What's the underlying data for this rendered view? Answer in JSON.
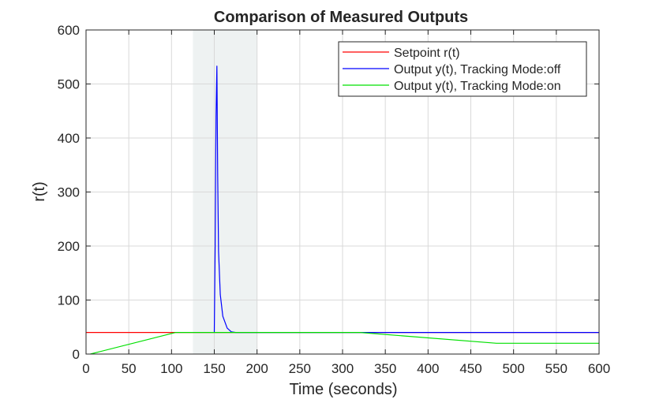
{
  "chart_data": {
    "type": "line",
    "title": "Comparison of Measured Outputs",
    "xlabel": "Time (seconds)",
    "ylabel": "r(t)",
    "xlim": [
      0,
      600
    ],
    "ylim": [
      0,
      600
    ],
    "xticks": [
      0,
      50,
      100,
      150,
      200,
      250,
      300,
      350,
      400,
      450,
      500,
      550,
      600
    ],
    "yticks": [
      0,
      100,
      200,
      300,
      400,
      500,
      600
    ],
    "grid": true,
    "legend_position": "top-right",
    "shaded_region": {
      "x_start": 125,
      "x_end": 200,
      "color": "#eef2f2"
    },
    "series": [
      {
        "name": "Setpoint r(t)",
        "color": "#ff0000",
        "x": [
          0,
          600
        ],
        "y": [
          40,
          40
        ]
      },
      {
        "name": "Output y(t), Tracking Mode:off",
        "color": "#0000ff",
        "x": [
          150,
          151,
          152,
          153,
          154,
          155,
          157,
          160,
          165,
          170,
          175,
          600
        ],
        "y": [
          40,
          200,
          440,
          533,
          330,
          190,
          110,
          70,
          48,
          41,
          40,
          40
        ]
      },
      {
        "name": "Output y(t), Tracking Mode:on",
        "color": "#00e000",
        "x": [
          5,
          105,
          320,
          480,
          600
        ],
        "y": [
          0,
          40,
          40,
          20,
          20
        ]
      }
    ]
  }
}
